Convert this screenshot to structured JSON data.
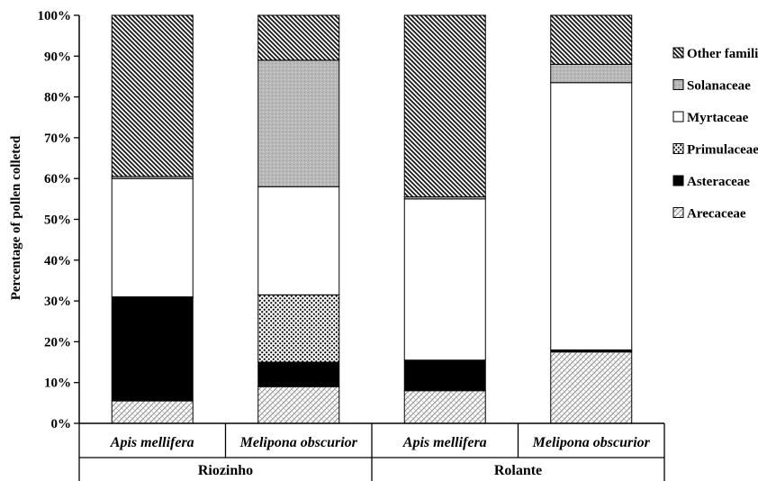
{
  "chart_data": {
    "type": "bar",
    "stacked": true,
    "ylabel": "Percentage of pollen colleted",
    "ylim": [
      0,
      100
    ],
    "yticks": [
      "0%",
      "10%",
      "20%",
      "30%",
      "40%",
      "50%",
      "60%",
      "70%",
      "80%",
      "90%",
      "100%"
    ],
    "categories": [
      "Apis mellifera",
      "Melipona obscurior",
      "Apis mellifera",
      "Melipona obscurior"
    ],
    "groups": [
      {
        "label": "Riozinho",
        "categories": [
          0,
          1
        ]
      },
      {
        "label": "Rolante",
        "categories": [
          2,
          3
        ]
      }
    ],
    "legend_position": "right",
    "grid": false,
    "series": [
      {
        "name": "Arecaceae",
        "pattern": "diagonal-cross-hatch",
        "values": [
          5.5,
          9,
          8,
          17.5
        ]
      },
      {
        "name": "Asteraceae",
        "pattern": "solid-black",
        "values": [
          25.5,
          6,
          7.5,
          0.5
        ]
      },
      {
        "name": "Primulaceae",
        "pattern": "dots",
        "values": [
          0,
          16.5,
          0,
          0
        ]
      },
      {
        "name": "Myrtaceae",
        "pattern": "white",
        "values": [
          29,
          26.5,
          39.5,
          65.5
        ]
      },
      {
        "name": "Solanaceae",
        "pattern": "light-gray-stipple",
        "values": [
          0.5,
          31,
          0.5,
          4.5
        ]
      },
      {
        "name": "Other families",
        "pattern": "dense-diagonal-stripes",
        "values": [
          39.5,
          11,
          44.5,
          12
        ]
      }
    ]
  }
}
